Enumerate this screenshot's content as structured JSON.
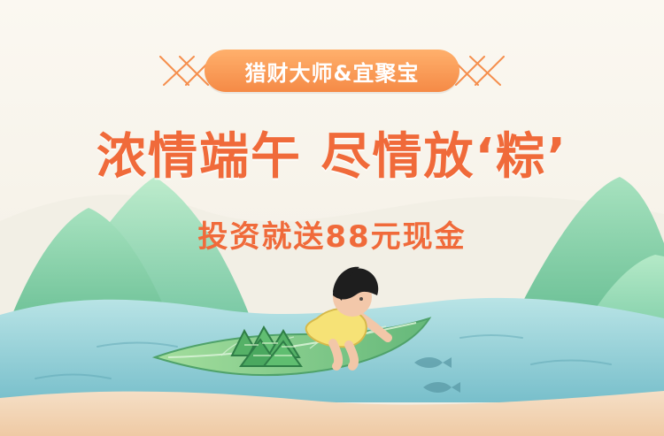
{
  "banner": {
    "brand_badge": "猎财大师&宜聚宝",
    "headline": "浓情端午  尽情放‘粽’",
    "subline": "投资就送88元现金"
  },
  "colors": {
    "accent": "#f06a3a",
    "badge_start": "#ffb06c",
    "badge_end": "#f58a46",
    "hill_green": "#67c296",
    "water": "#83c7d0",
    "sand": "#f2d4b2"
  },
  "icons": [
    "deco-lines-icon",
    "hill-icon",
    "water-icon",
    "leaf-boat-icon",
    "zongzi-icon",
    "fish-icon",
    "girl-icon"
  ]
}
